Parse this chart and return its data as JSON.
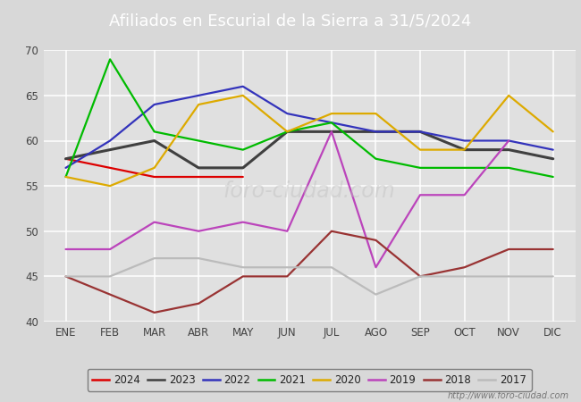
{
  "title": "Afiliados en Escurial de la Sierra a 31/5/2024",
  "title_bg_color": "#5b7fc4",
  "title_text_color": "#ffffff",
  "ylim": [
    40,
    70
  ],
  "yticks": [
    40,
    45,
    50,
    55,
    60,
    65,
    70
  ],
  "months": [
    "ENE",
    "FEB",
    "MAR",
    "ABR",
    "MAY",
    "JUN",
    "JUL",
    "AGO",
    "SEP",
    "OCT",
    "NOV",
    "DIC"
  ],
  "series": {
    "2024": {
      "color": "#dd0000",
      "linewidth": 1.6,
      "data": [
        58,
        57,
        56,
        56,
        56,
        null,
        null,
        null,
        null,
        null,
        null,
        null
      ]
    },
    "2023": {
      "color": "#404040",
      "linewidth": 2.2,
      "data": [
        58,
        59,
        60,
        57,
        57,
        61,
        61,
        61,
        61,
        59,
        59,
        58
      ]
    },
    "2022": {
      "color": "#3333bb",
      "linewidth": 1.6,
      "data": [
        57,
        60,
        64,
        65,
        66,
        63,
        62,
        61,
        61,
        60,
        60,
        59
      ]
    },
    "2021": {
      "color": "#00bb00",
      "linewidth": 1.6,
      "data": [
        56,
        69,
        61,
        60,
        59,
        61,
        62,
        58,
        57,
        57,
        57,
        56
      ]
    },
    "2020": {
      "color": "#ddaa00",
      "linewidth": 1.6,
      "data": [
        56,
        55,
        57,
        64,
        65,
        61,
        63,
        63,
        59,
        59,
        65,
        61
      ]
    },
    "2019": {
      "color": "#bb44bb",
      "linewidth": 1.6,
      "data": [
        48,
        48,
        51,
        50,
        51,
        50,
        61,
        46,
        54,
        54,
        60,
        null
      ]
    },
    "2018": {
      "color": "#993333",
      "linewidth": 1.6,
      "data": [
        45,
        43,
        41,
        42,
        45,
        45,
        50,
        49,
        45,
        46,
        48,
        48
      ]
    },
    "2017": {
      "color": "#bbbbbb",
      "linewidth": 1.6,
      "data": [
        45,
        45,
        47,
        47,
        46,
        46,
        46,
        43,
        45,
        45,
        45,
        45
      ]
    }
  },
  "legend_order": [
    "2024",
    "2023",
    "2022",
    "2021",
    "2020",
    "2019",
    "2018",
    "2017"
  ],
  "footer_text": "http://www.foro-ciudad.com",
  "bg_color": "#d8d8d8",
  "plot_bg_color": "#e0e0e0",
  "grid_color": "#ffffff",
  "figsize": [
    6.5,
    4.5
  ],
  "dpi": 100
}
